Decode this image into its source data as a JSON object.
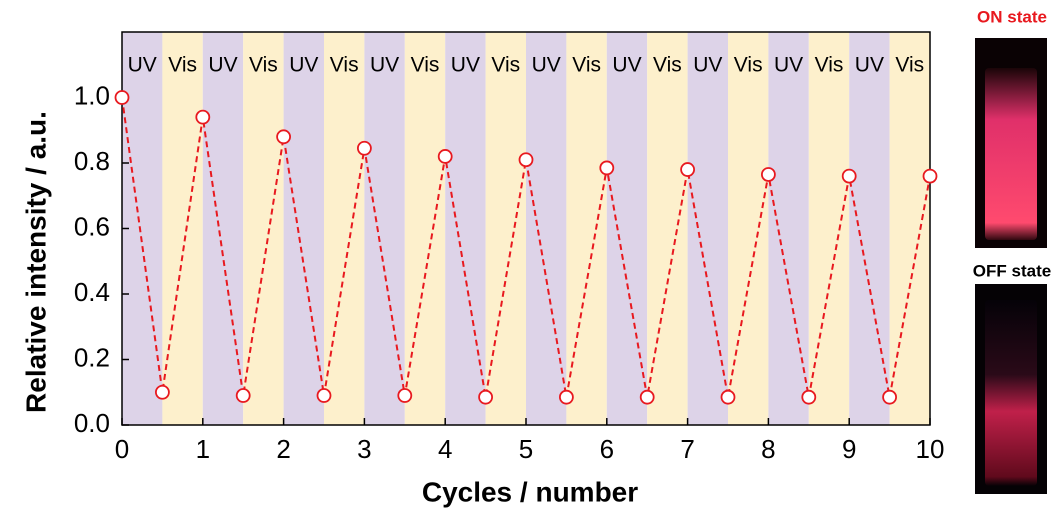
{
  "chart_data": {
    "type": "line",
    "x_title": "Cycles / number",
    "y_title": "Relative intensity / a.u.",
    "x": [
      0,
      0.5,
      1,
      1.5,
      2,
      2.5,
      3,
      3.5,
      4,
      4.5,
      5,
      5.5,
      6,
      6.5,
      7,
      7.5,
      8,
      8.5,
      9,
      9.5,
      10
    ],
    "series": [
      {
        "color": "#e8191f",
        "values": [
          1.0,
          0.1,
          0.94,
          0.09,
          0.88,
          0.09,
          0.845,
          0.09,
          0.82,
          0.085,
          0.81,
          0.085,
          0.785,
          0.085,
          0.78,
          0.085,
          0.765,
          0.085,
          0.76,
          0.085,
          0.76
        ]
      }
    ],
    "bands": [
      {
        "label": "UV",
        "start": 0,
        "end": 0.5,
        "color": "#ddd3e8"
      },
      {
        "label": "Vis",
        "start": 0.5,
        "end": 1,
        "color": "#fdf0cc"
      },
      {
        "label": "UV",
        "start": 1,
        "end": 1.5,
        "color": "#ddd3e8"
      },
      {
        "label": "Vis",
        "start": 1.5,
        "end": 2,
        "color": "#fdf0cc"
      },
      {
        "label": "UV",
        "start": 2,
        "end": 2.5,
        "color": "#ddd3e8"
      },
      {
        "label": "Vis",
        "start": 2.5,
        "end": 3,
        "color": "#fdf0cc"
      },
      {
        "label": "UV",
        "start": 3,
        "end": 3.5,
        "color": "#ddd3e8"
      },
      {
        "label": "Vis",
        "start": 3.5,
        "end": 4,
        "color": "#fdf0cc"
      },
      {
        "label": "UV",
        "start": 4,
        "end": 4.5,
        "color": "#ddd3e8"
      },
      {
        "label": "Vis",
        "start": 4.5,
        "end": 5,
        "color": "#fdf0cc"
      },
      {
        "label": "UV",
        "start": 5,
        "end": 5.5,
        "color": "#ddd3e8"
      },
      {
        "label": "Vis",
        "start": 5.5,
        "end": 6,
        "color": "#fdf0cc"
      },
      {
        "label": "UV",
        "start": 6,
        "end": 6.5,
        "color": "#ddd3e8"
      },
      {
        "label": "Vis",
        "start": 6.5,
        "end": 7,
        "color": "#fdf0cc"
      },
      {
        "label": "UV",
        "start": 7,
        "end": 7.5,
        "color": "#ddd3e8"
      },
      {
        "label": "Vis",
        "start": 7.5,
        "end": 8,
        "color": "#fdf0cc"
      },
      {
        "label": "UV",
        "start": 8,
        "end": 8.5,
        "color": "#ddd3e8"
      },
      {
        "label": "Vis",
        "start": 8.5,
        "end": 9,
        "color": "#fdf0cc"
      },
      {
        "label": "UV",
        "start": 9,
        "end": 9.5,
        "color": "#ddd3e8"
      },
      {
        "label": "Vis",
        "start": 9.5,
        "end": 10,
        "color": "#fdf0cc"
      }
    ],
    "xlim": [
      0,
      10
    ],
    "ylim": [
      0,
      1.2
    ],
    "xticks": [
      0,
      1,
      2,
      3,
      4,
      5,
      6,
      7,
      8,
      9,
      10
    ],
    "yticks": [
      {
        "value": 0,
        "label": "0.0"
      },
      0.2,
      0.4,
      0.6,
      0.8,
      {
        "value": 1,
        "label": "1.0"
      }
    ],
    "annotations": [
      {
        "text": "ON state",
        "color": "#e8191f"
      },
      {
        "text": "OFF state",
        "color": "#000000"
      }
    ]
  }
}
